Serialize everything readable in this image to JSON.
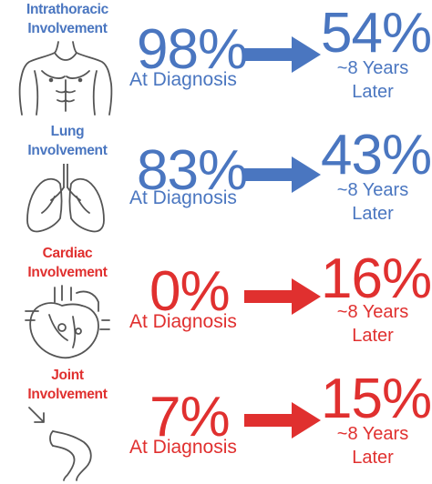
{
  "colors": {
    "blue": "#4a76c0",
    "red": "#e0302f",
    "icon_stroke": "#555555"
  },
  "rows": [
    {
      "label_lines": [
        "Intrathoracic",
        "Involvement"
      ],
      "color": "blue",
      "icon": "torso-icon",
      "before": "98%",
      "before_caption": "At Diagnosis",
      "after": "54%",
      "after_caption_lines": [
        "~8 Years",
        "Later"
      ]
    },
    {
      "label_lines": [
        "Lung",
        "Involvement"
      ],
      "color": "blue",
      "icon": "lungs-icon",
      "before": "83%",
      "before_caption": "At Diagnosis",
      "after": "43%",
      "after_caption_lines": [
        "~8 Years",
        "Later"
      ]
    },
    {
      "label_lines": [
        "Cardiac",
        "Involvement"
      ],
      "color": "red",
      "icon": "heart-icon",
      "before": "0%",
      "before_caption": "At Diagnosis",
      "after": "16%",
      "after_caption_lines": [
        "~8 Years",
        "Later"
      ]
    },
    {
      "label_lines": [
        "Joint",
        "Involvement"
      ],
      "color": "red",
      "icon": "knee-icon",
      "before": "7%",
      "before_caption": "At Diagnosis",
      "after": "15%",
      "after_caption_lines": [
        "~8 Years",
        "Later"
      ]
    }
  ]
}
